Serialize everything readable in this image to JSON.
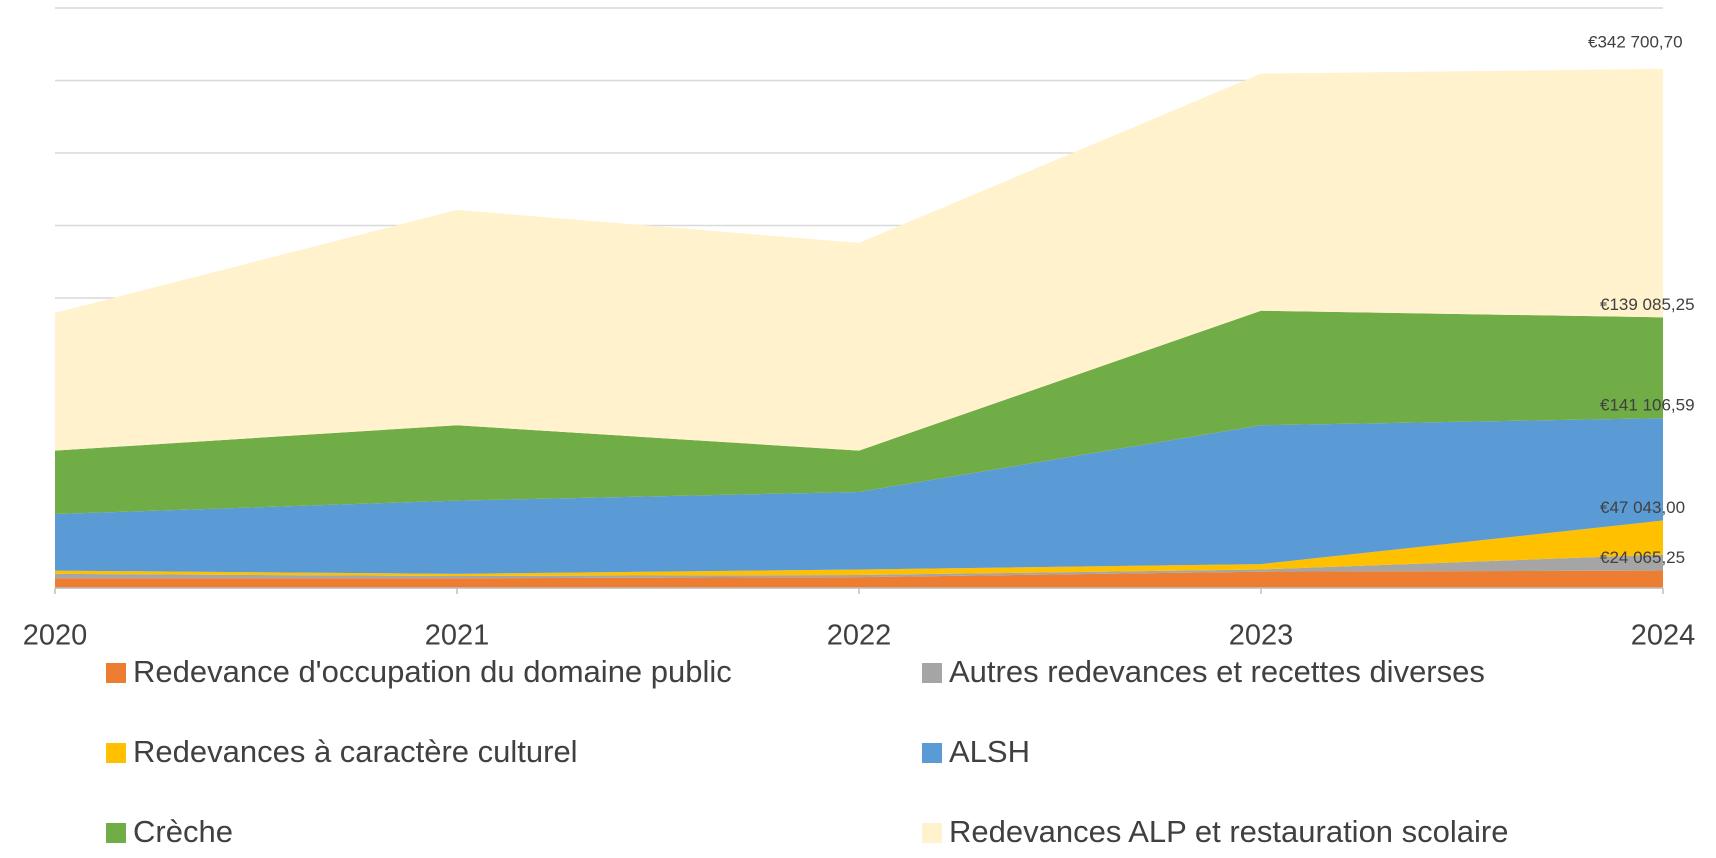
{
  "chart_data": {
    "type": "area",
    "categories": [
      "2020",
      "2021",
      "2022",
      "2023",
      "2024"
    ],
    "series": [
      {
        "name": "Redevance d'occupation du domaine public",
        "color": "#ED7D31",
        "values": [
          13500,
          13500,
          15000,
          22500,
          24065.25
        ],
        "value_labels": [
          null,
          null,
          null,
          null,
          "€24 065,25"
        ]
      },
      {
        "name": "Autres redevances et recettes diverses",
        "color": "#A5A5A5",
        "values": [
          6000,
          3000,
          3000,
          3000,
          22000
        ]
      },
      {
        "name": "Redevances à caractère culturel",
        "color": "#FFC000",
        "values": [
          4500,
          3000,
          7500,
          7500,
          47043
        ],
        "value_labels": [
          null,
          null,
          null,
          null,
          "€47 043,00"
        ]
      },
      {
        "name": "ALSH",
        "color": "#5B9BD5",
        "values": [
          78000,
          101000,
          107000,
          191500,
          141106.59
        ],
        "value_labels": [
          null,
          null,
          null,
          null,
          "€141 106,59"
        ]
      },
      {
        "name": "Crèche",
        "color": "#70AD47",
        "values": [
          87500,
          104000,
          57000,
          158000,
          139085.25
        ],
        "value_labels": [
          null,
          null,
          null,
          null,
          "€139 085,25"
        ]
      },
      {
        "name": "Redevances ALP et restauration scolaire",
        "color": "#FFF2CC",
        "values": [
          190000,
          297000,
          286500,
          327000,
          342700.7
        ],
        "value_labels": [
          null,
          null,
          null,
          null,
          "€342 700,70"
        ]
      }
    ],
    "ylim": [
      0,
      800000
    ],
    "yticks": [
      0,
      100000,
      200000,
      300000,
      400000,
      500000,
      600000,
      700000,
      800000
    ],
    "grid": true
  }
}
